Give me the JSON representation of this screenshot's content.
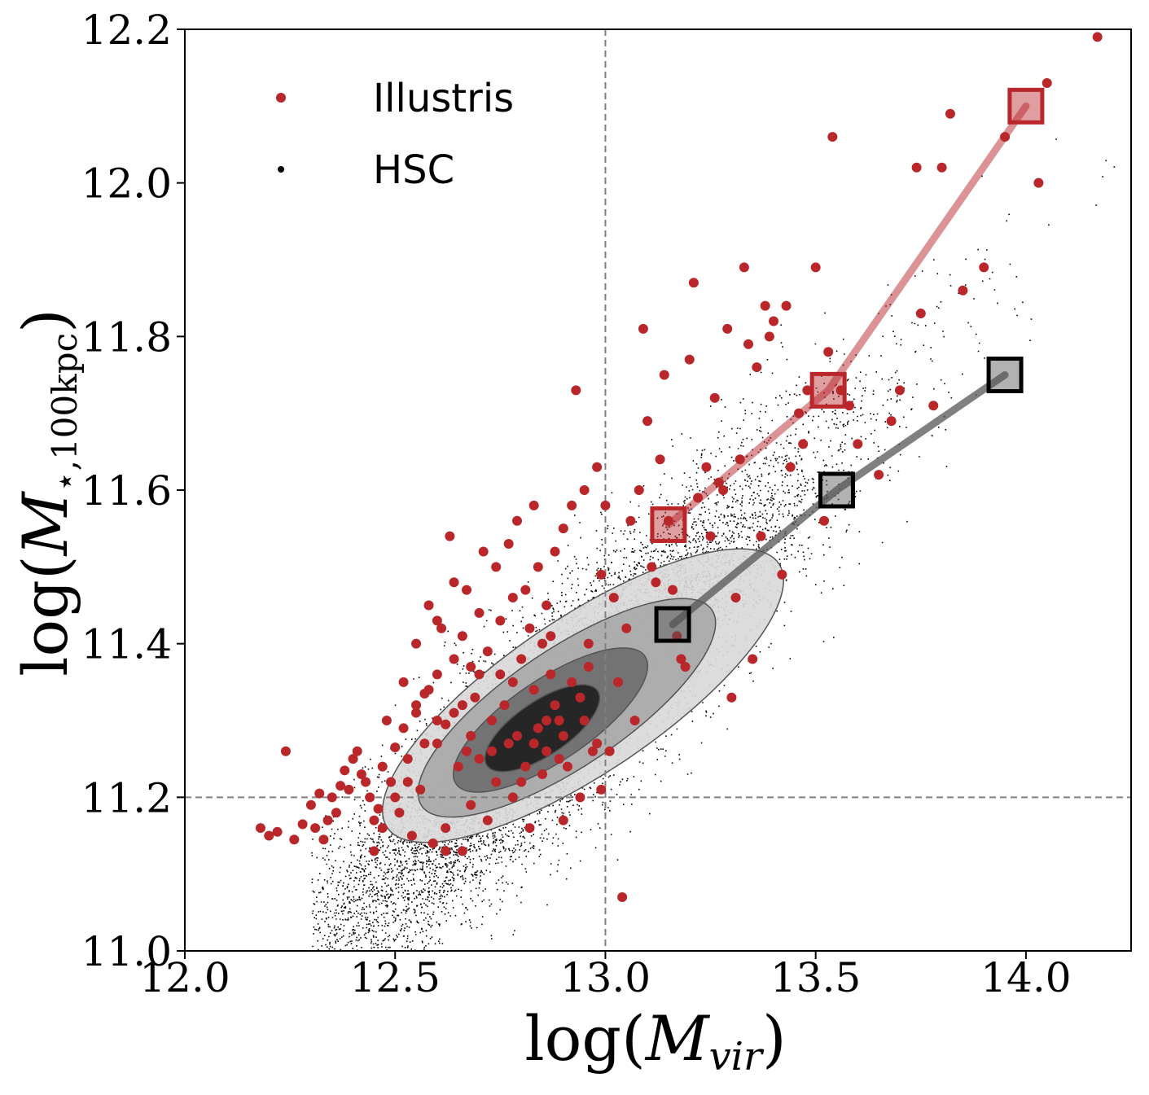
{
  "chart_data": {
    "type": "scatter",
    "title": "",
    "xlabel": "log(M_vir)",
    "ylabel": "log(M_⋆,100kpc)",
    "xlabel_parts": {
      "prefix": "log(",
      "italic": "M",
      "sub": "vir",
      "suffix": ")"
    },
    "ylabel_parts": {
      "prefix": "log(",
      "italic": "M",
      "sub": "⋆,100kpc",
      "suffix": ")"
    },
    "xlim": [
      12.0,
      14.25
    ],
    "ylim": [
      11.0,
      12.2
    ],
    "xticks": [
      "12.0",
      "12.5",
      "13.0",
      "13.5",
      "14.0"
    ],
    "yticks": [
      "11.0",
      "11.2",
      "11.4",
      "11.6",
      "11.8",
      "12.0",
      "12.2"
    ],
    "grid": false,
    "legend_position": "top-left",
    "legend": [
      {
        "label": "Illustris",
        "color": "#b9272b",
        "marker": "circle"
      },
      {
        "label": "HSC",
        "color": "#000000",
        "marker": "dot"
      }
    ],
    "reference_lines": {
      "vertical_x": 13.0,
      "horizontal_y": 11.2
    },
    "series": [
      {
        "name": "Illustris",
        "color": "#b9272b",
        "points": [
          [
            12.18,
            11.16
          ],
          [
            12.22,
            11.155
          ],
          [
            12.26,
            11.145
          ],
          [
            12.3,
            11.19
          ],
          [
            12.31,
            11.16
          ],
          [
            12.33,
            11.145
          ],
          [
            12.35,
            11.2
          ],
          [
            12.38,
            11.235
          ],
          [
            12.39,
            11.21
          ],
          [
            12.41,
            11.26
          ],
          [
            12.43,
            11.22
          ],
          [
            12.45,
            11.17
          ],
          [
            12.47,
            11.24
          ],
          [
            12.5,
            11.265
          ],
          [
            12.52,
            11.29
          ],
          [
            12.55,
            11.31
          ],
          [
            12.57,
            11.335
          ],
          [
            12.6,
            11.36
          ],
          [
            12.62,
            11.295
          ],
          [
            12.64,
            11.38
          ],
          [
            12.66,
            11.32
          ],
          [
            12.68,
            11.28
          ],
          [
            12.7,
            11.36
          ],
          [
            12.72,
            11.39
          ],
          [
            12.75,
            11.43
          ],
          [
            12.78,
            11.46
          ],
          [
            12.8,
            11.38
          ],
          [
            12.82,
            11.42
          ],
          [
            12.84,
            11.5
          ],
          [
            12.86,
            11.45
          ],
          [
            12.88,
            11.52
          ],
          [
            12.9,
            11.55
          ],
          [
            12.92,
            11.58
          ],
          [
            12.95,
            11.6
          ],
          [
            12.98,
            11.63
          ],
          [
            13.0,
            11.58
          ],
          [
            13.02,
            11.46
          ],
          [
            13.04,
            11.07
          ],
          [
            13.06,
            11.56
          ],
          [
            13.08,
            11.6
          ],
          [
            13.1,
            11.69
          ],
          [
            13.12,
            11.48
          ],
          [
            13.14,
            11.75
          ],
          [
            13.16,
            11.47
          ],
          [
            13.18,
            11.38
          ],
          [
            13.2,
            11.77
          ],
          [
            13.22,
            11.59
          ],
          [
            13.24,
            11.63
          ],
          [
            13.26,
            11.72
          ],
          [
            13.28,
            11.6
          ],
          [
            13.3,
            11.33
          ],
          [
            13.32,
            11.64
          ],
          [
            13.34,
            11.79
          ],
          [
            13.36,
            11.76
          ],
          [
            13.38,
            11.84
          ],
          [
            13.4,
            11.82
          ],
          [
            13.42,
            11.49
          ],
          [
            13.44,
            11.63
          ],
          [
            13.46,
            11.7
          ],
          [
            13.48,
            11.73
          ],
          [
            13.5,
            11.89
          ],
          [
            13.52,
            11.56
          ],
          [
            13.54,
            12.06
          ],
          [
            13.56,
            11.73
          ],
          [
            13.6,
            11.66
          ],
          [
            13.65,
            11.62
          ],
          [
            13.7,
            11.73
          ],
          [
            13.75,
            11.83
          ],
          [
            13.78,
            11.71
          ],
          [
            13.8,
            12.02
          ],
          [
            13.82,
            12.09
          ],
          [
            13.9,
            11.89
          ],
          [
            13.95,
            12.06
          ],
          [
            14.03,
            12.0
          ],
          [
            14.05,
            12.13
          ],
          [
            14.17,
            12.19
          ],
          [
            12.24,
            11.26
          ],
          [
            12.36,
            11.18
          ],
          [
            12.42,
            11.23
          ],
          [
            12.48,
            11.3
          ],
          [
            12.53,
            11.25
          ],
          [
            12.58,
            11.34
          ],
          [
            12.61,
            11.42
          ],
          [
            12.63,
            11.54
          ],
          [
            12.67,
            11.47
          ],
          [
            12.69,
            11.33
          ],
          [
            12.71,
            11.52
          ],
          [
            12.73,
            11.26
          ],
          [
            12.76,
            11.32
          ],
          [
            12.79,
            11.28
          ],
          [
            12.81,
            11.24
          ],
          [
            12.83,
            11.58
          ],
          [
            12.85,
            11.4
          ],
          [
            12.87,
            11.36
          ],
          [
            12.89,
            11.3
          ],
          [
            12.91,
            11.24
          ],
          [
            12.93,
            11.73
          ],
          [
            12.96,
            11.4
          ],
          [
            12.99,
            11.49
          ],
          [
            13.01,
            11.26
          ],
          [
            13.03,
            11.35
          ],
          [
            13.05,
            11.42
          ],
          [
            13.07,
            11.3
          ],
          [
            13.09,
            11.81
          ],
          [
            13.11,
            11.5
          ],
          [
            13.13,
            11.64
          ],
          [
            13.15,
            11.56
          ],
          [
            13.17,
            11.41
          ],
          [
            13.19,
            11.37
          ],
          [
            13.21,
            11.87
          ],
          [
            13.25,
            11.54
          ],
          [
            13.27,
            11.61
          ],
          [
            13.29,
            11.81
          ],
          [
            13.31,
            11.46
          ],
          [
            13.33,
            11.89
          ],
          [
            13.35,
            11.38
          ],
          [
            13.37,
            11.54
          ],
          [
            13.39,
            11.8
          ],
          [
            13.43,
            11.84
          ],
          [
            13.47,
            11.66
          ],
          [
            13.53,
            11.78
          ],
          [
            13.58,
            11.71
          ],
          [
            13.68,
            11.69
          ],
          [
            13.74,
            12.02
          ],
          [
            13.85,
            11.86
          ],
          [
            12.2,
            11.15
          ],
          [
            12.28,
            11.165
          ],
          [
            12.32,
            11.205
          ],
          [
            12.34,
            11.17
          ],
          [
            12.37,
            11.215
          ],
          [
            12.4,
            11.25
          ],
          [
            12.44,
            11.2
          ],
          [
            12.46,
            11.185
          ],
          [
            12.49,
            11.22
          ],
          [
            12.51,
            11.18
          ],
          [
            12.54,
            11.15
          ],
          [
            12.56,
            11.21
          ],
          [
            12.59,
            11.14
          ],
          [
            12.62,
            11.16
          ],
          [
            12.65,
            11.24
          ],
          [
            12.68,
            11.19
          ],
          [
            12.7,
            11.25
          ],
          [
            12.74,
            11.22
          ],
          [
            12.77,
            11.27
          ],
          [
            12.8,
            11.22
          ],
          [
            12.82,
            11.16
          ],
          [
            12.84,
            11.29
          ],
          [
            12.86,
            11.26
          ],
          [
            12.88,
            11.32
          ],
          [
            12.9,
            11.28
          ],
          [
            12.92,
            11.35
          ],
          [
            12.94,
            11.33
          ],
          [
            12.96,
            11.37
          ],
          [
            12.97,
            11.26
          ],
          [
            12.99,
            11.21
          ],
          [
            12.55,
            11.4
          ],
          [
            12.58,
            11.45
          ],
          [
            12.6,
            11.43
          ],
          [
            12.64,
            11.48
          ],
          [
            12.66,
            11.41
          ],
          [
            12.7,
            11.44
          ],
          [
            12.74,
            11.5
          ],
          [
            12.77,
            11.53
          ],
          [
            12.79,
            11.56
          ],
          [
            12.81,
            11.47
          ],
          [
            12.87,
            11.41
          ],
          [
            12.83,
            11.34
          ],
          [
            12.73,
            11.3
          ],
          [
            12.68,
            11.37
          ],
          [
            12.6,
            11.3
          ],
          [
            12.57,
            11.27
          ],
          [
            12.53,
            11.22
          ],
          [
            12.5,
            11.2
          ],
          [
            12.47,
            11.16
          ],
          [
            12.45,
            11.13
          ],
          [
            12.52,
            11.35
          ],
          [
            12.55,
            11.32
          ],
          [
            12.62,
            11.13
          ],
          [
            12.66,
            11.13
          ],
          [
            12.72,
            11.17
          ],
          [
            12.78,
            11.2
          ],
          [
            12.85,
            11.23
          ],
          [
            12.9,
            11.17
          ],
          [
            12.94,
            11.2
          ],
          [
            12.6,
            11.27
          ],
          [
            12.64,
            11.31
          ],
          [
            12.67,
            11.26
          ],
          [
            12.75,
            11.36
          ],
          [
            12.78,
            11.35
          ],
          [
            12.83,
            11.27
          ],
          [
            12.86,
            11.3
          ],
          [
            12.89,
            11.25
          ],
          [
            12.95,
            11.3
          ],
          [
            12.98,
            11.27
          ]
        ],
        "median_line": [
          [
            13.15,
            11.555
          ],
          [
            13.53,
            11.73
          ],
          [
            14.0,
            12.1
          ]
        ]
      },
      {
        "name": "HSC",
        "color": "#000000",
        "density_center": [
          12.85,
          11.29
        ],
        "median_line": [
          [
            13.16,
            11.425
          ],
          [
            13.55,
            11.6
          ],
          [
            13.95,
            11.75
          ]
        ]
      }
    ]
  }
}
